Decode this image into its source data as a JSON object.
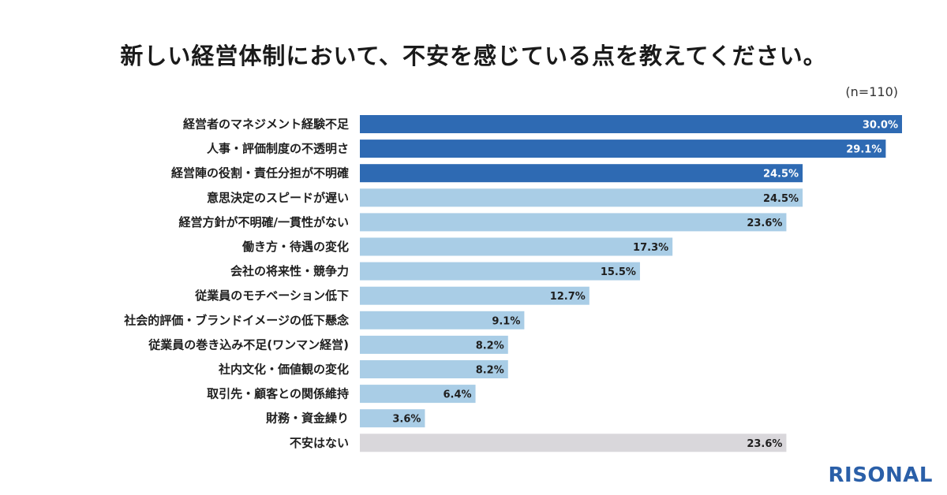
{
  "title": "新しい経営体制において、不安を感じている点を教えてください。",
  "sample_size": "(n=110)",
  "brand": "RISONAL",
  "colors": {
    "top3": "#2e6ab3",
    "rest": "#a9cde6",
    "none": "#d9d7db",
    "brand": "#2a5fa8"
  },
  "chart_data": {
    "type": "bar",
    "orientation": "horizontal",
    "title": "新しい経営体制において、不安を感じている点を教えてください。",
    "unit": "%",
    "xlim": [
      0,
      32
    ],
    "categories": [
      "経営者のマネジメント経験不足",
      "人事・評価制度の不透明さ",
      "経営陣の役割・責任分担が不明確",
      "意思決定のスピードが遅い",
      "経営方針が不明確/一貫性がない",
      "働き方・待遇の変化",
      "会社の将来性・競争力",
      "従業員のモチベーション低下",
      "社会的評価・ブランドイメージの低下懸念",
      "従業員の巻き込み不足(ワンマン経営)",
      "社内文化・価値観の変化",
      "取引先・顧客との関係維持",
      "財務・資金繰り",
      "不安はない"
    ],
    "values": [
      30.0,
      29.1,
      24.5,
      24.5,
      23.6,
      17.3,
      15.5,
      12.7,
      9.1,
      8.2,
      8.2,
      6.4,
      3.6,
      23.6
    ],
    "value_labels": [
      "30.0%",
      "29.1%",
      "24.5%",
      "24.5%",
      "23.6%",
      "17.3%",
      "15.5%",
      "12.7%",
      "9.1%",
      "8.2%",
      "8.2%",
      "6.4%",
      "3.6%",
      "23.6%"
    ],
    "groups": [
      "top3",
      "top3",
      "top3",
      "rest",
      "rest",
      "rest",
      "rest",
      "rest",
      "rest",
      "rest",
      "rest",
      "rest",
      "rest",
      "none"
    ]
  }
}
